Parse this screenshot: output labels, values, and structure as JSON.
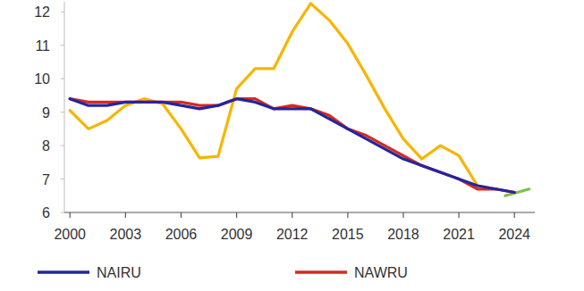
{
  "chart_data": {
    "type": "line",
    "x": [
      2000,
      2001,
      2002,
      2003,
      2004,
      2005,
      2006,
      2007,
      2008,
      2009,
      2010,
      2011,
      2012,
      2013,
      2014,
      2015,
      2016,
      2017,
      2018,
      2019,
      2020,
      2021,
      2022,
      2023,
      2024
    ],
    "series": [
      {
        "name": "NAIRU",
        "color": "#25259e",
        "values": [
          9.4,
          9.2,
          9.2,
          9.3,
          9.3,
          9.3,
          9.2,
          9.1,
          9.2,
          9.4,
          9.3,
          9.1,
          9.1,
          9.1,
          8.8,
          8.5,
          8.2,
          7.9,
          7.6,
          7.4,
          7.2,
          7.0,
          6.8,
          6.7,
          6.6
        ]
      },
      {
        "name": "NAWRU",
        "color": "#d52b1e",
        "values": [
          9.4,
          9.3,
          9.3,
          9.3,
          9.3,
          9.3,
          9.3,
          9.2,
          9.2,
          9.4,
          9.4,
          9.1,
          9.2,
          9.1,
          8.9,
          8.5,
          8.3,
          8.0,
          7.7,
          7.4,
          7.2,
          7.0,
          6.7,
          6.7,
          6.6
        ]
      },
      {
        "color": "#f7b500",
        "values": [
          9.05,
          8.5,
          8.75,
          9.2,
          9.4,
          9.25,
          8.5,
          7.63,
          7.68,
          9.7,
          10.3,
          10.3,
          11.4,
          12.25,
          11.75,
          11.05,
          10.1,
          9.1,
          8.2,
          7.6,
          8.0,
          7.7,
          6.8,
          6.7,
          null
        ]
      },
      {
        "color": "#7cc242",
        "x": [
          2023.5,
          2024.8
        ],
        "values": [
          6.5,
          6.7
        ]
      }
    ],
    "xlim": [
      1999.7,
      2025.1
    ],
    "xticks": [
      2000,
      2003,
      2006,
      2009,
      2012,
      2015,
      2018,
      2021,
      2024
    ],
    "ylim": [
      6,
      12.3
    ],
    "yticks": [
      6,
      7,
      8,
      9,
      10,
      11,
      12
    ],
    "grid": false,
    "legend": "bottom"
  }
}
